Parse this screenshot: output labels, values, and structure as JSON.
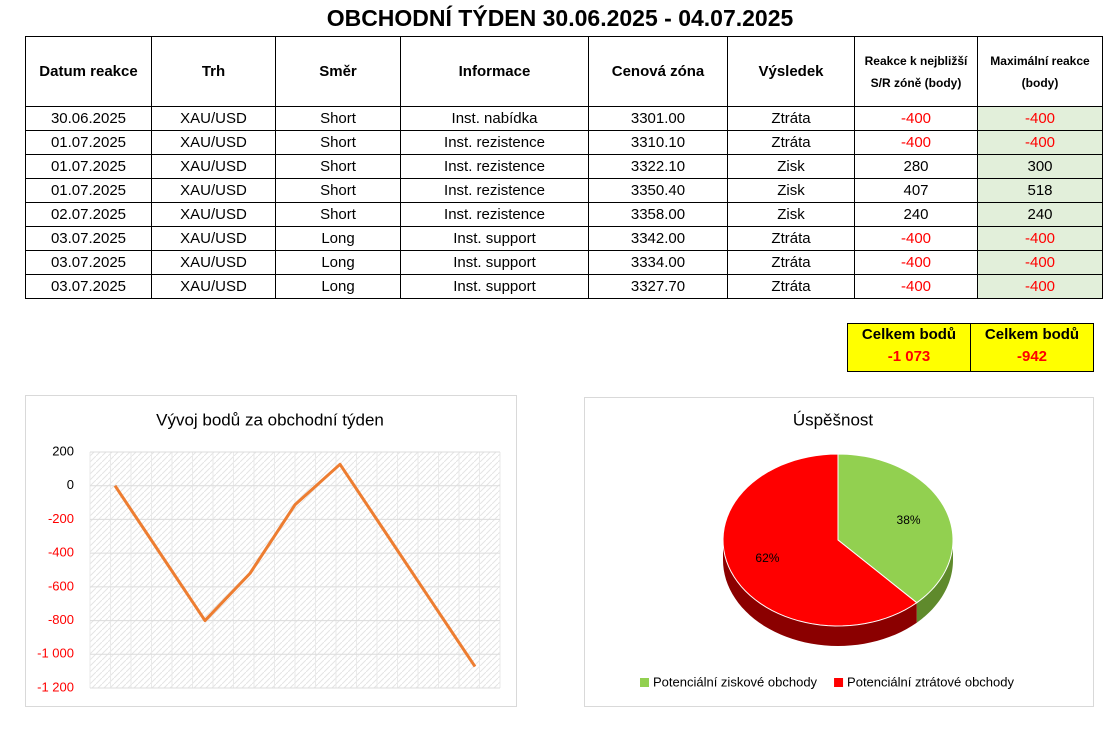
{
  "title": "OBCHODNÍ TÝDEN 30.06.2025 - 04.07.2025",
  "table": {
    "headers": [
      "Datum reakce",
      "Trh",
      "Směr",
      "Informace",
      "Cenová zóna",
      "Výsledek",
      "Reakce k nejbližší S/R zóně (body)",
      "Maximální reakce (body)"
    ],
    "rows": [
      [
        "30.06.2025",
        "XAU/USD",
        "Short",
        "Inst. nabídka",
        "3301.00",
        "Ztráta",
        -400,
        -400
      ],
      [
        "01.07.2025",
        "XAU/USD",
        "Short",
        "Inst. rezistence",
        "3310.10",
        "Ztráta",
        -400,
        -400
      ],
      [
        "01.07.2025",
        "XAU/USD",
        "Short",
        "Inst. rezistence",
        "3322.10",
        "Zisk",
        280,
        300
      ],
      [
        "01.07.2025",
        "XAU/USD",
        "Short",
        "Inst. rezistence",
        "3350.40",
        "Zisk",
        407,
        518
      ],
      [
        "02.07.2025",
        "XAU/USD",
        "Short",
        "Inst. rezistence",
        "3358.00",
        "Zisk",
        240,
        240
      ],
      [
        "03.07.2025",
        "XAU/USD",
        "Long",
        "Inst. support",
        "3342.00",
        "Ztráta",
        -400,
        -400
      ],
      [
        "03.07.2025",
        "XAU/USD",
        "Long",
        "Inst. support",
        "3334.00",
        "Ztráta",
        -400,
        -400
      ],
      [
        "03.07.2025",
        "XAU/USD",
        "Long",
        "Inst. support",
        "3327.70",
        "Ztráta",
        -400,
        -400
      ]
    ]
  },
  "totals": [
    {
      "label": "Celkem bodů",
      "value": "-1 073"
    },
    {
      "label": "Celkem bodů",
      "value": "-942"
    }
  ],
  "chart_data": [
    {
      "type": "line",
      "title": "Vývoj bodů za obchodní týden",
      "values": [
        0,
        -400,
        -800,
        -520,
        -113,
        127,
        -273,
        -673,
        -1073
      ],
      "color": "#ed7d31",
      "ylim": [
        -1200,
        200
      ],
      "yticks": [
        200,
        0,
        -200,
        -400,
        -600,
        -800,
        {
          "value": -1000,
          "label": "-1 000"
        },
        {
          "value": -1200,
          "label": "-1 200"
        }
      ],
      "grid": true,
      "negative_color": "#ff0000"
    },
    {
      "type": "pie",
      "title": "Úspěšnost",
      "categories": [
        "Potenciální ziskové obchody",
        "Potenciální ztrátové obchody"
      ],
      "values": [
        38,
        62
      ],
      "value_labels": [
        "38%",
        "62%"
      ],
      "colors": [
        "#92d050",
        "#ff0000"
      ],
      "legend": "bottom"
    }
  ]
}
